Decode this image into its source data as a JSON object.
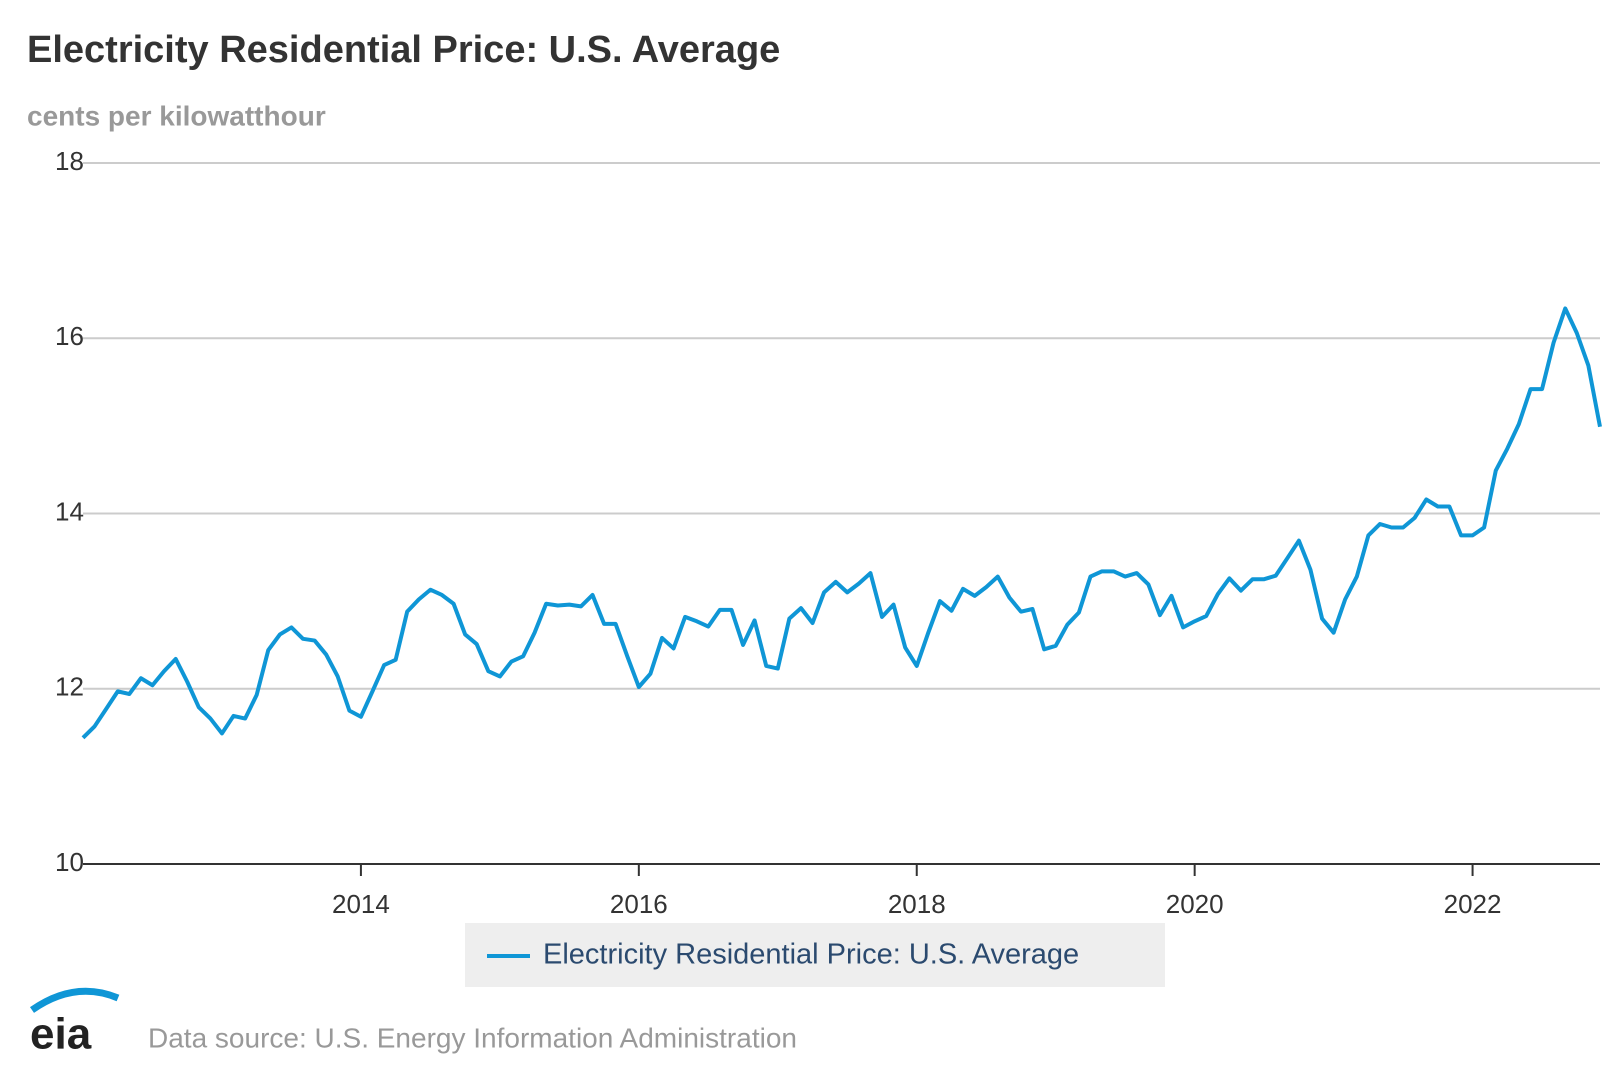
{
  "chart_data": {
    "type": "line",
    "title": "Electricity Residential Price: U.S. Average",
    "subtitle": "cents per kilowatthour",
    "source": "Data source: U.S. Energy Information Administration",
    "logo": "eia",
    "x": [
      2012,
      2012.083,
      2012.167,
      2012.25,
      2012.333,
      2012.417,
      2012.5,
      2012.583,
      2012.667,
      2012.75,
      2012.833,
      2012.917,
      2013,
      2013.083,
      2013.167,
      2013.25,
      2013.333,
      2013.417,
      2013.5,
      2013.583,
      2013.667,
      2013.75,
      2013.833,
      2013.917,
      2014,
      2014.083,
      2014.167,
      2014.25,
      2014.333,
      2014.417,
      2014.5,
      2014.583,
      2014.667,
      2014.75,
      2014.833,
      2014.917,
      2015,
      2015.083,
      2015.167,
      2015.25,
      2015.333,
      2015.417,
      2015.5,
      2015.583,
      2015.667,
      2015.75,
      2015.833,
      2015.917,
      2016,
      2016.083,
      2016.167,
      2016.25,
      2016.333,
      2016.417,
      2016.5,
      2016.583,
      2016.667,
      2016.75,
      2016.833,
      2016.917,
      2017,
      2017.083,
      2017.167,
      2017.25,
      2017.333,
      2017.417,
      2017.5,
      2017.583,
      2017.667,
      2017.75,
      2017.833,
      2017.917,
      2018,
      2018.083,
      2018.167,
      2018.25,
      2018.333,
      2018.417,
      2018.5,
      2018.583,
      2018.667,
      2018.75,
      2018.833,
      2018.917,
      2019,
      2019.083,
      2019.167,
      2019.25,
      2019.333,
      2019.417,
      2019.5,
      2019.583,
      2019.667,
      2019.75,
      2019.833,
      2019.917,
      2020,
      2020.083,
      2020.167,
      2020.25,
      2020.333,
      2020.417,
      2020.5,
      2020.583,
      2020.667,
      2020.75,
      2020.833,
      2020.917,
      2021,
      2021.083,
      2021.167,
      2021.25,
      2021.333,
      2021.417,
      2021.5,
      2021.583,
      2021.667,
      2021.75,
      2021.833,
      2021.917,
      2022,
      2022.083,
      2022.167,
      2022.25,
      2022.333,
      2022.417,
      2022.5,
      2022.583,
      2022.667,
      2022.75,
      2022.833,
      2022.917
    ],
    "series": [
      {
        "name": "Electricity Residential Price: U.S. Average",
        "color": "#0f96d6",
        "values": [
          11.44,
          11.57,
          11.77,
          11.97,
          11.94,
          12.12,
          12.04,
          12.2,
          12.34,
          12.08,
          11.79,
          11.66,
          11.49,
          11.69,
          11.66,
          11.93,
          12.44,
          12.62,
          12.7,
          12.57,
          12.55,
          12.39,
          12.14,
          11.75,
          11.68,
          11.97,
          12.27,
          12.33,
          12.88,
          13.02,
          13.13,
          13.07,
          12.97,
          12.62,
          12.51,
          12.2,
          12.14,
          12.31,
          12.37,
          12.64,
          12.97,
          12.95,
          12.96,
          12.94,
          13.07,
          12.74,
          12.74,
          12.37,
          12.02,
          12.17,
          12.58,
          12.46,
          12.82,
          12.77,
          12.71,
          12.9,
          12.9,
          12.5,
          12.78,
          12.26,
          12.23,
          12.8,
          12.92,
          12.75,
          13.1,
          13.22,
          13.1,
          13.2,
          13.32,
          12.82,
          12.96,
          12.47,
          12.26,
          12.64,
          13.0,
          12.89,
          13.14,
          13.06,
          13.16,
          13.28,
          13.04,
          12.88,
          12.91,
          12.45,
          12.49,
          12.73,
          12.87,
          13.28,
          13.34,
          13.34,
          13.28,
          13.32,
          13.19,
          12.84,
          13.06,
          12.7,
          12.77,
          12.83,
          13.08,
          13.26,
          13.12,
          13.25,
          13.25,
          13.29,
          13.49,
          13.69,
          13.36,
          12.8,
          12.64,
          13.02,
          13.28,
          13.75,
          13.88,
          13.84,
          13.84,
          13.95,
          14.16,
          14.08,
          14.08,
          13.75,
          13.75,
          13.84,
          14.49,
          14.74,
          15.02,
          15.42,
          15.42,
          15.95,
          16.34,
          16.06,
          15.69,
          14.99
        ]
      }
    ],
    "xlim": [
      2012,
      2022.917
    ],
    "xticks": [
      2014,
      2016,
      2018,
      2020,
      2022
    ],
    "ylim": [
      10,
      18
    ],
    "yticks": [
      10,
      12,
      14,
      16,
      18
    ],
    "grid": true
  }
}
